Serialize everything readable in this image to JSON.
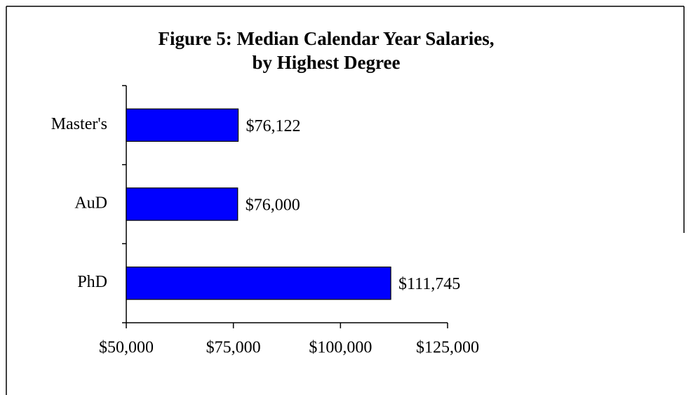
{
  "chart_data": {
    "type": "bar",
    "orientation": "horizontal",
    "title": [
      "Figure 5: Median Calendar Year Salaries,",
      "by Highest Degree"
    ],
    "categories": [
      "Master's",
      "AuD",
      "PhD"
    ],
    "values": [
      76122,
      76000,
      111745
    ],
    "value_labels": [
      "$76,122",
      "$76,000",
      "$111,745"
    ],
    "color": "#0000ff",
    "xlim": [
      50000,
      125000
    ],
    "xticks": [
      {
        "value": 50000,
        "label": "$50,000"
      },
      {
        "value": 75000,
        "label": "$75,000"
      },
      {
        "value": 100000,
        "label": "$100,000"
      },
      {
        "value": 125000,
        "label": "$125,000"
      }
    ],
    "grid": false
  }
}
